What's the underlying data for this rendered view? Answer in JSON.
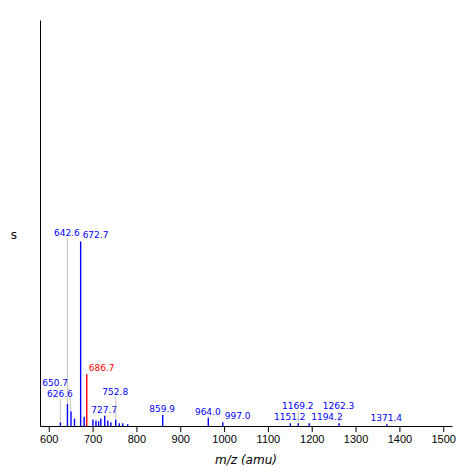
{
  "chart_data": {
    "type": "stem",
    "xlabel": "m/z (amu)",
    "ylabel": "s",
    "x": [
      626.6,
      642.6,
      650.7,
      658.7,
      672.7,
      680.7,
      686.7,
      700.7,
      707.7,
      713.7,
      718.7,
      727.7,
      734.7,
      741.7,
      752.8,
      760.8,
      768.8,
      780.0,
      859.9,
      964.0,
      997.0,
      1151.2,
      1169.2,
      1194.2,
      1262.3,
      1371.4
    ],
    "values": [
      2.0,
      12.0,
      8.0,
      4.0,
      100.0,
      5.0,
      28.0,
      3.5,
      3.0,
      2.5,
      4.0,
      5.5,
      3.0,
      2.0,
      3.5,
      1.5,
      1.5,
      1.0,
      6.0,
      4.5,
      2.0,
      1.5,
      1.5,
      1.5,
      1.5,
      1.0
    ],
    "colors": [
      "blue",
      "blue",
      "blue",
      "blue",
      "blue",
      "blue",
      "red",
      "blue",
      "blue",
      "blue",
      "blue",
      "blue",
      "blue",
      "blue",
      "blue",
      "blue",
      "blue",
      "blue",
      "blue",
      "blue",
      "blue",
      "blue",
      "blue",
      "blue",
      "blue",
      "blue"
    ],
    "annotations": [
      {
        "text": "626.6",
        "x": 626.6,
        "y": 2.0
      },
      {
        "text": "642.6",
        "x": 642.6,
        "y": 12.0
      },
      {
        "text": "650.7",
        "x": 650.7,
        "y": 8.0
      },
      {
        "text": "672.7",
        "x": 672.7,
        "y": 100.0
      },
      {
        "text": "686.7",
        "x": 686.7,
        "y": 28.0
      },
      {
        "text": "727.7",
        "x": 727.7,
        "y": 5.5
      },
      {
        "text": "752.8",
        "x": 752.8,
        "y": 3.5
      },
      {
        "text": "859.9",
        "x": 859.9,
        "y": 6.0
      },
      {
        "text": "964.0",
        "x": 964.0,
        "y": 4.5
      },
      {
        "text": "997.0",
        "x": 997.0,
        "y": 2.0
      },
      {
        "text": "1151.2",
        "x": 1151.2,
        "y": 1.5
      },
      {
        "text": "1169.2",
        "x": 1169.2,
        "y": 1.5
      },
      {
        "text": "1194.2",
        "x": 1194.2,
        "y": 1.5
      },
      {
        "text": "1262.3",
        "x": 1262.3,
        "y": 1.5
      },
      {
        "text": "1371.4",
        "x": 1371.4,
        "y": 1.0
      }
    ],
    "xlim": [
      580,
      1520
    ],
    "ylim": [
      0,
      220
    ],
    "xticks": [
      600,
      700,
      800,
      900,
      1000,
      1100,
      1200,
      1300,
      1400,
      1500
    ],
    "tick_labels": "x",
    "grid": false
  }
}
